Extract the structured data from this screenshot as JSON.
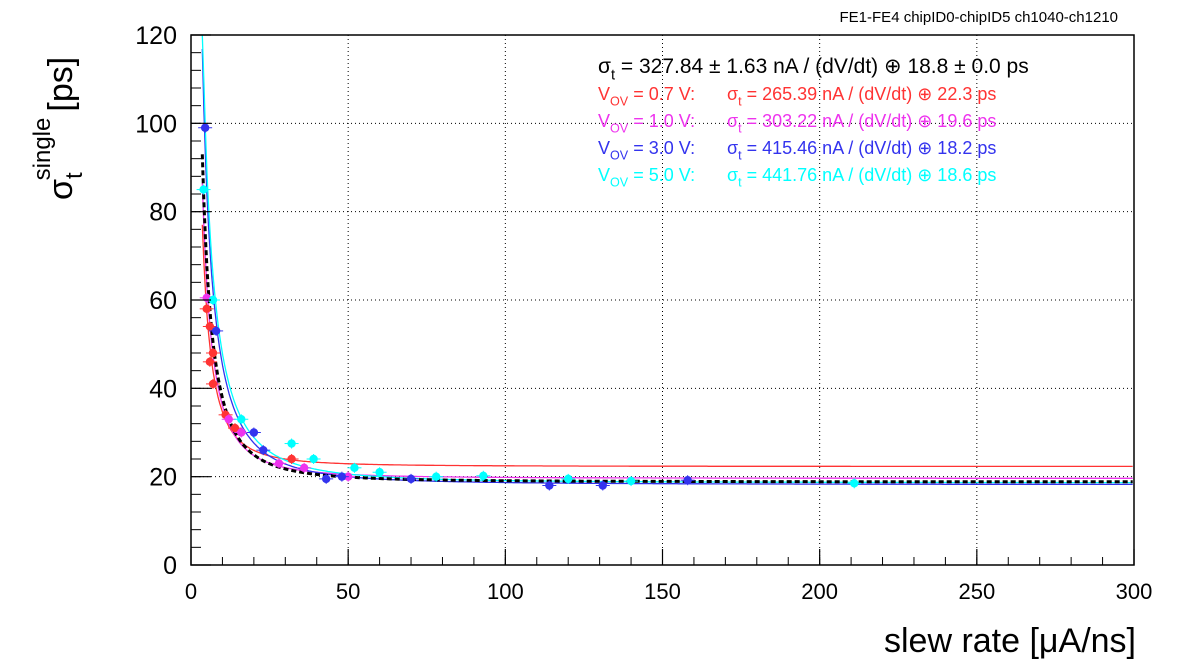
{
  "header": "FE1-FE4   chipID0-chipID5   ch1040-ch1210",
  "chart_data": {
    "type": "scatter",
    "xlabel": "slew rate [μA/ns]",
    "ylabel": {
      "base": "σ",
      "sup": "single",
      "sub": "t",
      "unit": "[ps]"
    },
    "xlim": [
      0,
      300
    ],
    "ylim": [
      0,
      120
    ],
    "xticks": [
      0,
      50,
      100,
      150,
      200,
      250,
      300
    ],
    "yticks": [
      0,
      20,
      40,
      60,
      80,
      100,
      120
    ],
    "grid": true,
    "legend_position": "top-right",
    "combined_fit": {
      "text": "σt = 327.84 ± 1.63 nA / (dV/dt) ⊕ 18.8 ± 0.0 ps",
      "color": "#000000",
      "noise": 327.84,
      "constant": 18.8
    },
    "series": [
      {
        "name": "VOV = 0.7 V:",
        "fit_text": "σt = 265.39 nA / (dV/dt) ⊕ 22.3 ps",
        "color": "#ff3333",
        "noise": 265.39,
        "constant": 22.3,
        "points": [
          [
            5,
            58
          ],
          [
            6,
            54
          ],
          [
            6,
            46
          ],
          [
            7,
            48
          ],
          [
            7,
            41
          ],
          [
            11,
            34
          ],
          [
            14,
            31
          ],
          [
            32,
            24
          ]
        ]
      },
      {
        "name": "VOV = 1.0 V:",
        "fit_text": "σt = 303.22 nA / (dV/dt) ⊕ 19.6 ps",
        "color": "#ee33ee",
        "noise": 303.22,
        "constant": 19.6,
        "points": [
          [
            5,
            60.5
          ],
          [
            12,
            33
          ],
          [
            16,
            30
          ],
          [
            28,
            23
          ],
          [
            36,
            22
          ],
          [
            50,
            20
          ]
        ]
      },
      {
        "name": "VOV = 3.0 V:",
        "fit_text": "σt = 415.46 nA / (dV/dt) ⊕ 18.2 ps",
        "color": "#3333ee",
        "noise": 415.46,
        "constant": 18.2,
        "points": [
          [
            4.5,
            99
          ],
          [
            8,
            53
          ],
          [
            20,
            30
          ],
          [
            23,
            26
          ],
          [
            43,
            19.5
          ],
          [
            48,
            20
          ],
          [
            70,
            19.5
          ],
          [
            114,
            18
          ],
          [
            131,
            18
          ],
          [
            158,
            19.2
          ]
        ]
      },
      {
        "name": "VOV = 5.0 V:",
        "fit_text": "σt = 441.76 nA / (dV/dt) ⊕ 18.6 ps",
        "color": "#00ffff",
        "noise": 441.76,
        "constant": 18.6,
        "points": [
          [
            4,
            85
          ],
          [
            7,
            60
          ],
          [
            16,
            33
          ],
          [
            32,
            27.5
          ],
          [
            39,
            24
          ],
          [
            52,
            22
          ],
          [
            60,
            21
          ],
          [
            78,
            20
          ],
          [
            93,
            20.2
          ],
          [
            120,
            19.5
          ],
          [
            140,
            19
          ],
          [
            211,
            18.5
          ]
        ]
      }
    ]
  }
}
